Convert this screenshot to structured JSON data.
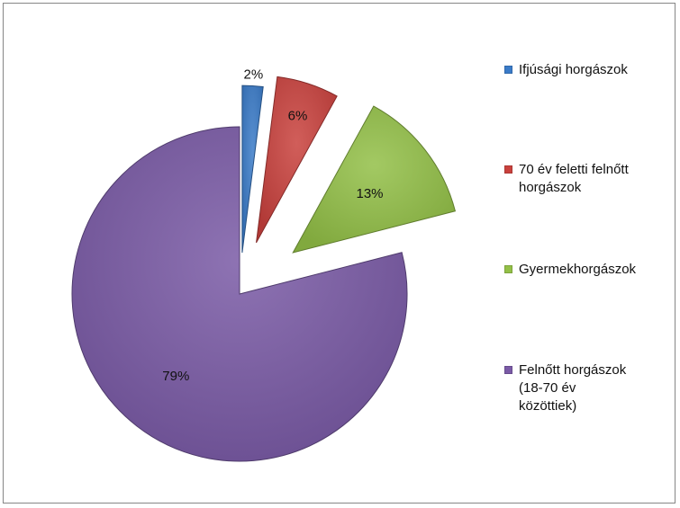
{
  "chart_data": {
    "type": "pie",
    "exploded": true,
    "slices": [
      {
        "name": "Ifjúsági horgászok",
        "value": 2,
        "label": "2%",
        "color": "#3a7bc8"
      },
      {
        "name": "70 év feletti felnőtt\nhorgászok",
        "value": 6,
        "label": "6%",
        "color": "#c9413d"
      },
      {
        "name": "Gyermekhorgászok",
        "value": 13,
        "label": "13%",
        "color": "#93c047"
      },
      {
        "name": "Felnőtt horgászok\n(18-70 év\nközöttiek)",
        "value": 79,
        "label": "79%",
        "color": "#7a5aa6"
      }
    ],
    "legend_position": "right"
  }
}
